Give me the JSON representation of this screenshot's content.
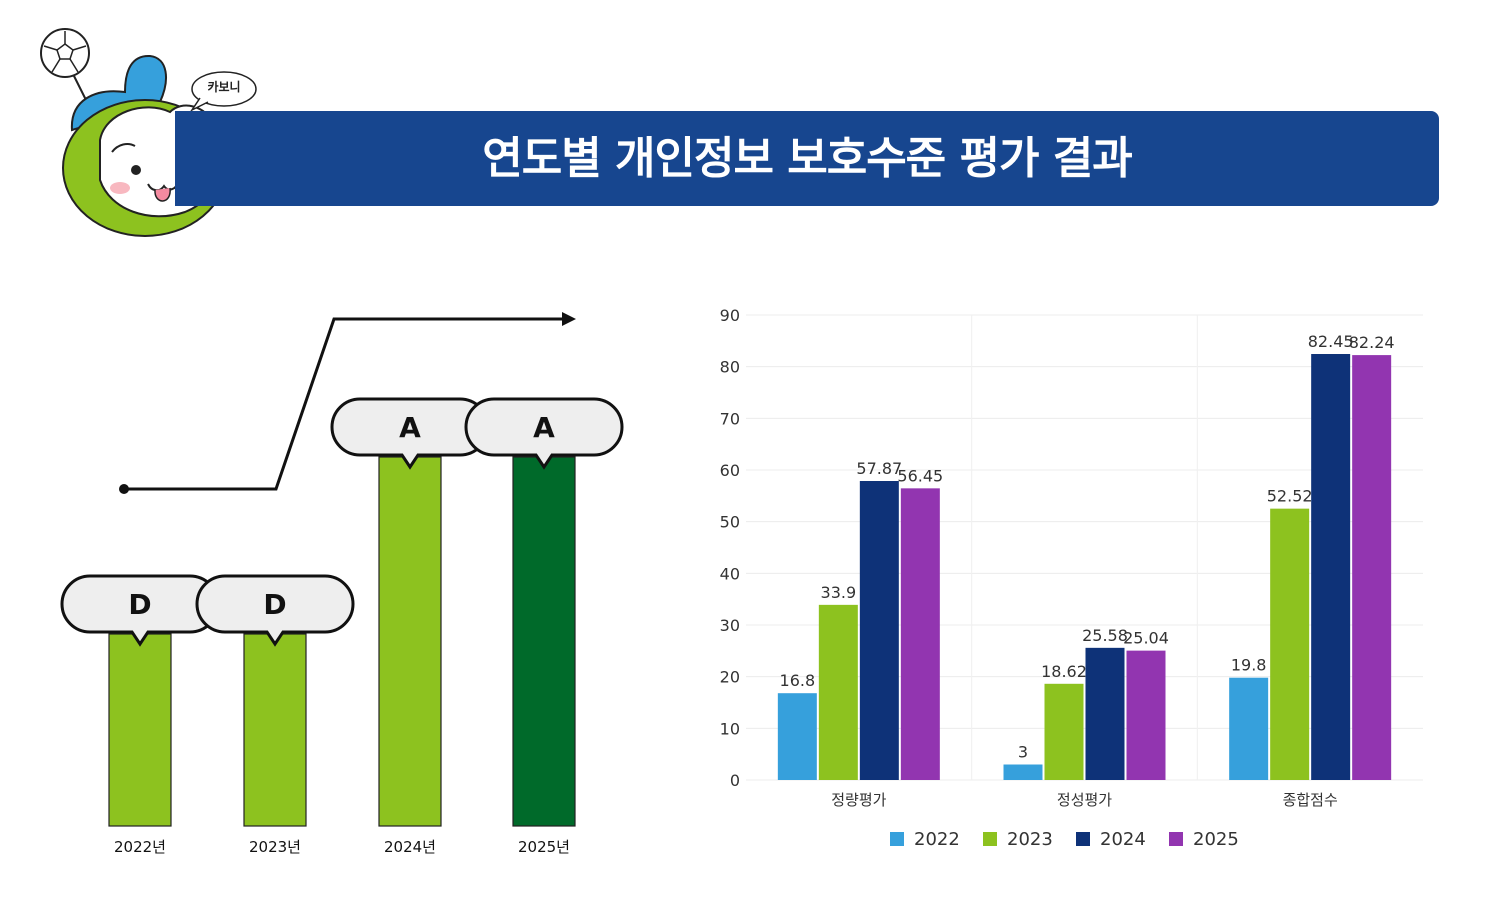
{
  "header": {
    "title": "연도별 개인정보 보호수준 평가 결과",
    "mascot_label": "카보니",
    "banner_color": "#17468f"
  },
  "grade_chart": {
    "bars": [
      {
        "year": "2022년",
        "grade": "D",
        "level": 1,
        "color": "#8dc21f"
      },
      {
        "year": "2023년",
        "grade": "D",
        "level": 1,
        "color": "#8dc21f"
      },
      {
        "year": "2024년",
        "grade": "A",
        "level": 2,
        "color": "#8dc21f"
      },
      {
        "year": "2025년",
        "grade": "A",
        "level": 2,
        "color": "#006a2a"
      }
    ]
  },
  "chart_data": {
    "type": "bar",
    "categories": [
      "정량평가",
      "정성평가",
      "종합점수"
    ],
    "series": [
      {
        "name": "2022",
        "color": "#36a0dc",
        "values": [
          16.8,
          3,
          19.8
        ]
      },
      {
        "name": "2023",
        "color": "#8dc21f",
        "values": [
          33.9,
          18.62,
          52.52
        ]
      },
      {
        "name": "2024",
        "color": "#0e3278",
        "values": [
          57.87,
          25.58,
          82.45
        ]
      },
      {
        "name": "2025",
        "color": "#9235b0",
        "values": [
          56.45,
          25.04,
          82.24
        ]
      }
    ],
    "yticks": [
      0,
      10,
      20,
      30,
      40,
      50,
      60,
      70,
      80,
      90
    ],
    "ylim": [
      0,
      90
    ],
    "grid": true,
    "legend": "bottom"
  }
}
